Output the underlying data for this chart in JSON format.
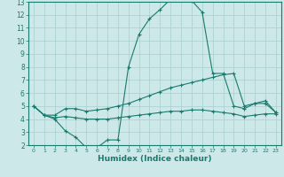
{
  "xlabel": "Humidex (Indice chaleur)",
  "x_values": [
    0,
    1,
    2,
    3,
    4,
    5,
    6,
    7,
    8,
    9,
    10,
    11,
    12,
    13,
    14,
    15,
    16,
    17,
    18,
    19,
    20,
    21,
    22,
    23
  ],
  "curve_top": [
    5.0,
    4.3,
    4.0,
    3.1,
    2.6,
    1.8,
    1.8,
    2.4,
    2.4,
    8.0,
    10.5,
    11.7,
    12.4,
    13.2,
    13.2,
    13.1,
    12.2,
    7.5,
    7.5,
    5.0,
    4.8,
    5.2,
    5.2,
    4.5
  ],
  "curve_mid": [
    5.0,
    4.3,
    4.3,
    4.8,
    4.8,
    4.6,
    4.7,
    4.8,
    5.0,
    5.2,
    5.5,
    5.8,
    6.1,
    6.4,
    6.6,
    6.8,
    7.0,
    7.2,
    7.4,
    7.5,
    5.0,
    5.2,
    5.4,
    4.5
  ],
  "curve_bot": [
    5.0,
    4.3,
    4.1,
    4.2,
    4.1,
    4.0,
    4.0,
    4.0,
    4.1,
    4.2,
    4.3,
    4.4,
    4.5,
    4.6,
    4.6,
    4.7,
    4.7,
    4.6,
    4.5,
    4.4,
    4.2,
    4.3,
    4.4,
    4.4
  ],
  "color": "#1a7a6e",
  "bg_color": "#cce8e8",
  "grid_color": "#aacece",
  "ylim": [
    2,
    13
  ],
  "xlim": [
    0,
    23
  ]
}
